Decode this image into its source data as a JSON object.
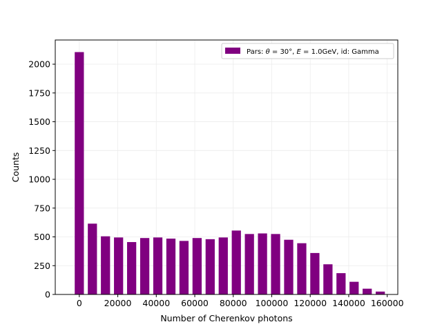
{
  "chart_data": {
    "type": "bar",
    "title": "",
    "xlabel": "Number of Cherenkov photons",
    "ylabel": "Counts",
    "xlim": [
      -12500,
      165500
    ],
    "ylim": [
      0,
      2210
    ],
    "x_ticks": [
      0,
      20000,
      40000,
      60000,
      80000,
      100000,
      120000,
      140000,
      160000
    ],
    "y_ticks": [
      0,
      250,
      500,
      750,
      1000,
      1250,
      1500,
      1750,
      2000
    ],
    "grid": true,
    "legend_position": "upper-right",
    "bin_width": 6800,
    "bin_spacing": 6800,
    "series": [
      {
        "name": "Pars: θ = 30°, E = 1.0GeV, id: Gamma",
        "color": "#800080",
        "x": [
          0,
          6800,
          13600,
          20400,
          27200,
          34000,
          40800,
          47600,
          54400,
          61200,
          68000,
          74800,
          81600,
          88400,
          95200,
          102000,
          108800,
          115600,
          122400,
          129200,
          136000,
          142800,
          149600,
          156400
        ],
        "values": [
          2105,
          615,
          505,
          495,
          455,
          490,
          495,
          485,
          465,
          490,
          480,
          495,
          555,
          525,
          530,
          525,
          475,
          445,
          360,
          262,
          185,
          110,
          50,
          25
        ]
      }
    ]
  },
  "legend": {
    "label_prefix": "Pars: ",
    "theta_symbol": "θ",
    "theta_value": " = 30°, ",
    "energy_symbol": "E",
    "energy_value": " = 1.0GeV, id: Gamma"
  },
  "tick_labels": {
    "x": [
      "0",
      "20000",
      "40000",
      "60000",
      "80000",
      "100000",
      "120000",
      "140000",
      "160000"
    ],
    "y": [
      "0",
      "250",
      "500",
      "750",
      "1000",
      "1250",
      "1500",
      "1750",
      "2000"
    ]
  },
  "colors": {
    "bar": "#800080",
    "grid": "#ececec",
    "axis": "#000000"
  }
}
